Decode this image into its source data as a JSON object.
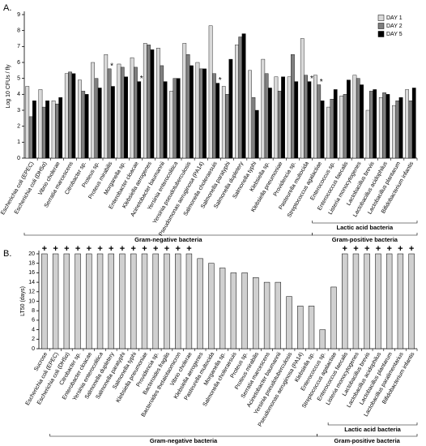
{
  "chart_data": [
    {
      "type": "bar",
      "panel_label": "A.",
      "ylabel": "Log 10 CFUs / fly",
      "categories": [
        "Escherichia coli (EPEC)",
        "Escherichia coli (DH5α)",
        "Vibrio cholerae",
        "Serratia marcescens",
        "Citrobacter sp.",
        "Proteus sp.",
        "Proteus mirabilis",
        "Morganella sp.",
        "Enterobacter cloacae",
        "Klebsiella aerogenes",
        "Acinetobacter baumannii",
        "Yersinia enterocolitica",
        "Yersinia pseudotuberculosis",
        "Pseudomonas aeruginosa (PA14)",
        "Salmonella choleraesuis",
        "Salmonella paratyphi",
        "Salmonella dupletery",
        "Salmonella typhi",
        "Klebsiella sp.",
        "Klebsiella pneumoniae",
        "Providencia sp.",
        "Pasteurella multocida",
        "Streptococcus agalactiae",
        "Enterococcus sp.",
        "Enterococcus faecalis",
        "Listeria monocytogenes",
        "Lactobacillus brevis",
        "Lactobacillus acidophilus",
        "Lactobacillus plantarum",
        "Bifidobacterium infantis"
      ],
      "series": [
        {
          "name": "DAY 1",
          "color": "#d9d9d9",
          "values": [
            4.5,
            4.3,
            3.6,
            5.3,
            4.9,
            6.0,
            6.5,
            5.9,
            6.3,
            7.2,
            6.9,
            4.2,
            7.2,
            6.0,
            8.3,
            4.5,
            7.1,
            5.5,
            6.2,
            5.1,
            5.1,
            7.5,
            5.2,
            3.2,
            3.9,
            5.2,
            3.0,
            3.8,
            3.3,
            4.3
          ]
        },
        {
          "name": "DAY 2",
          "color": "#7f7f7f",
          "values": [
            2.6,
            3.2,
            3.4,
            5.4,
            4.2,
            5.0,
            5.6,
            5.7,
            5.7,
            7.1,
            5.8,
            5.0,
            6.5,
            5.6,
            5.3,
            4.0,
            7.6,
            3.8,
            5.3,
            4.2,
            6.5,
            5.2,
            4.6,
            3.7,
            4.0,
            5.0,
            4.2,
            4.1,
            3.6,
            3.6
          ]
        },
        {
          "name": "DAY 5",
          "color": "#000000",
          "values": [
            3.6,
            3.6,
            3.8,
            5.3,
            4.0,
            4.4,
            4.5,
            5.1,
            4.8,
            6.8,
            4.8,
            5.0,
            5.8,
            5.6,
            4.7,
            6.2,
            7.8,
            3.0,
            4.4,
            5.1,
            4.8,
            4.8,
            3.6,
            4.3,
            4.9,
            4.6,
            4.3,
            4.0,
            3.8,
            4.4
          ]
        }
      ],
      "annotations": [
        {
          "text": "*",
          "category": "Proteus mirabilis",
          "series": "DAY 2"
        },
        {
          "text": "*",
          "category": "Enterobacter cloacae",
          "series": "DAY 5"
        },
        {
          "text": "*",
          "category": "Salmonella choleraesuis",
          "series": "DAY 5"
        },
        {
          "text": "*",
          "category": "Pasteurella multocida",
          "series": "DAY 5"
        },
        {
          "text": "*",
          "category": "Streptococcus agalactiae",
          "series": "DAY 2"
        }
      ],
      "groups": [
        {
          "label": "Lactic acid bacteria",
          "from": "Streptococcus agalactiae",
          "to": "Bifidobacterium infantis"
        },
        {
          "label": "Gram-negative bacteria",
          "from": "Escherichia coli (EPEC)",
          "to": "Pasteurella multocida"
        },
        {
          "label": "Gram-positive bacteria",
          "from": "Streptococcus agalactiae",
          "to": "Bifidobacterium infantis"
        }
      ],
      "ylim": [
        0,
        9
      ],
      "yticks": [
        0,
        1,
        2,
        3,
        4,
        5,
        6,
        7,
        8,
        9
      ],
      "legend": "upper right"
    },
    {
      "type": "bar",
      "panel_label": "B.",
      "ylabel": "LT50 (days)",
      "categories": [
        "Sucrose",
        "Escherichia coli (EPEC)",
        "Escherichia coli (DH5α)",
        "Citrobacter sp.",
        "Enterobacter cloacae",
        "Yersinia enterocolitica",
        "Salmonella dupletery",
        "Salmonella paratyphi",
        "Salmonella typhi",
        "Klebsiella pneumoniae",
        "Providencia sp.",
        "Bacteroides fragilis",
        "Bacteroides thetaiotaomicron",
        "Vibrio cholerae",
        "Klebsiella aerogenes",
        "Pasteurella multocida",
        "Morganella sp.",
        "Salmonella choleraesuis",
        "Proteus sp.",
        "Proteus mirabilis",
        "Serratia marcescens",
        "Acinetobacter baumannii",
        "Yersinia pseudotuberculosis",
        "Pseudomonas aeruginosa (PA14)",
        "Klebsiella sp.",
        "Enterococcus sp.",
        "Streptococcus agalactiae",
        "Enterococcus faecalis",
        "Listeria monocytogenes",
        "Lactobacillus brevis",
        "Lactobacillus acidophilus",
        "Lactobacillus plantarum",
        "Lactobacillus paralimentarius",
        "Bifidobacterium infantis"
      ],
      "values": [
        20,
        20,
        20,
        20,
        20,
        20,
        20,
        20,
        20,
        20,
        20,
        20,
        20,
        20,
        19,
        18,
        17,
        16,
        16,
        15,
        14,
        14,
        11,
        9,
        9,
        4,
        13,
        20,
        20,
        20,
        20,
        20,
        20,
        20
      ],
      "color": "#d0d0d0",
      "above_marker": "+",
      "marked": [
        true,
        true,
        true,
        true,
        true,
        true,
        true,
        true,
        true,
        true,
        true,
        true,
        true,
        true,
        false,
        false,
        false,
        false,
        false,
        false,
        false,
        false,
        false,
        false,
        false,
        false,
        false,
        true,
        true,
        true,
        true,
        true,
        true,
        true
      ],
      "groups": [
        {
          "label": "Lactic acid bacteria",
          "from": "Streptococcus agalactiae",
          "to": "Bifidobacterium infantis"
        },
        {
          "label": "Gram-negative bacteria",
          "from": "Escherichia coli (EPEC)",
          "to": "Klebsiella sp."
        },
        {
          "label": "Gram-positive bacteria",
          "from": "Enterococcus sp.",
          "to": "Bifidobacterium infantis"
        }
      ],
      "ylim": [
        0,
        20
      ],
      "yticks": [
        0,
        2,
        4,
        6,
        8,
        10,
        12,
        14,
        16,
        18,
        20
      ]
    }
  ]
}
